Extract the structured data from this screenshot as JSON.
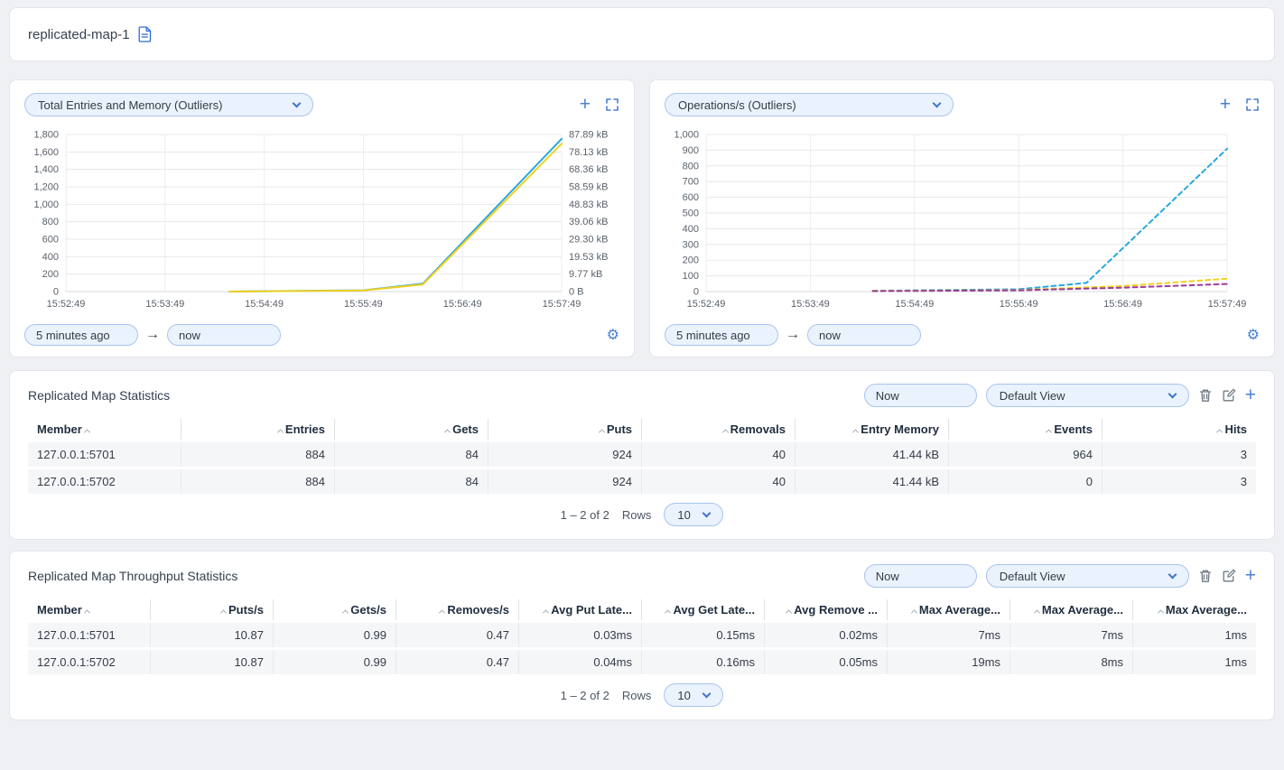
{
  "theme": {
    "accent": "#2f6bd8"
  },
  "header": {
    "title": "replicated-map-1"
  },
  "charts": [
    {
      "metric": "Total Entries and Memory (Outliers)",
      "from": "5 minutes ago",
      "to": "now"
    },
    {
      "metric": "Operations/s (Outliers)",
      "from": "5 minutes ago",
      "to": "now"
    }
  ],
  "chart_data": [
    {
      "type": "line",
      "title": "Total Entries and Memory (Outliers)",
      "x_ticks": [
        "15:52:49",
        "15:53:49",
        "15:54:49",
        "15:55:49",
        "15:56:49",
        "15:57:49"
      ],
      "y_left": {
        "min": 0,
        "max": 1800,
        "ticks": [
          "0",
          "200",
          "400",
          "600",
          "800",
          "1,000",
          "1,200",
          "1,400",
          "1,600",
          "1,800"
        ]
      },
      "y_right": {
        "ticks": [
          "0 B",
          "9.77 kB",
          "19.53 kB",
          "29.30 kB",
          "39.06 kB",
          "48.83 kB",
          "58.59 kB",
          "68.36 kB",
          "78.13 kB",
          "87.89 kB"
        ]
      },
      "grid": true,
      "legend": "none",
      "series": [
        {
          "name": "blue-entries",
          "color": "#29a8dd",
          "dashed": false,
          "points": [
            [
              0.33,
              0
            ],
            [
              0.6,
              15
            ],
            [
              0.72,
              90
            ],
            [
              1,
              1750
            ]
          ]
        },
        {
          "name": "yellow-memory",
          "color": "#f2cf1f",
          "dashed": false,
          "points": [
            [
              0.33,
              0
            ],
            [
              0.6,
              12
            ],
            [
              0.72,
              82
            ],
            [
              1,
              1695
            ]
          ]
        }
      ]
    },
    {
      "type": "line",
      "title": "Operations/s (Outliers)",
      "x_ticks": [
        "15:52:49",
        "15:53:49",
        "15:54:49",
        "15:55:49",
        "15:56:49",
        "15:57:49"
      ],
      "y_left": {
        "min": 0,
        "max": 1000,
        "ticks": [
          "0",
          "100",
          "200",
          "300",
          "400",
          "500",
          "600",
          "700",
          "800",
          "900",
          "1,000"
        ]
      },
      "grid": true,
      "legend": "none",
      "series": [
        {
          "name": "blue-ops",
          "color": "#29a8dd",
          "dashed": true,
          "points": [
            [
              0.32,
              5
            ],
            [
              0.6,
              15
            ],
            [
              0.73,
              55
            ],
            [
              1,
              910
            ]
          ]
        },
        {
          "name": "yellow-ops",
          "color": "#f2cf1f",
          "dashed": true,
          "points": [
            [
              0.32,
              4
            ],
            [
              0.6,
              10
            ],
            [
              0.8,
              35
            ],
            [
              1,
              82
            ]
          ]
        },
        {
          "name": "purple-ops",
          "color": "#9b3d96",
          "dashed": true,
          "points": [
            [
              0.32,
              3
            ],
            [
              0.6,
              8
            ],
            [
              0.8,
              25
            ],
            [
              1,
              48
            ]
          ]
        }
      ]
    }
  ],
  "tables": [
    {
      "title": "Replicated Map Statistics",
      "time_filter": "Now",
      "view": "Default View",
      "columns": [
        "Member",
        "Entries",
        "Gets",
        "Puts",
        "Removals",
        "Entry Memory",
        "Events",
        "Hits"
      ],
      "rows": [
        [
          "127.0.0.1:5701",
          "884",
          "84",
          "924",
          "40",
          "41.44 kB",
          "964",
          "3"
        ],
        [
          "127.0.0.1:5702",
          "884",
          "84",
          "924",
          "40",
          "41.44 kB",
          "0",
          "3"
        ]
      ],
      "pagination": {
        "range": "1 – 2 of 2",
        "rows_label": "Rows",
        "page_size": "10"
      }
    },
    {
      "title": "Replicated Map Throughput Statistics",
      "time_filter": "Now",
      "view": "Default View",
      "columns": [
        "Member",
        "Puts/s",
        "Gets/s",
        "Removes/s",
        "Avg Put Late...",
        "Avg Get Late...",
        "Avg Remove ...",
        "Max Average...",
        "Max Average...",
        "Max Average..."
      ],
      "rows": [
        [
          "127.0.0.1:5701",
          "10.87",
          "0.99",
          "0.47",
          "0.03ms",
          "0.15ms",
          "0.02ms",
          "7ms",
          "7ms",
          "1ms"
        ],
        [
          "127.0.0.1:5702",
          "10.87",
          "0.99",
          "0.47",
          "0.04ms",
          "0.16ms",
          "0.05ms",
          "19ms",
          "8ms",
          "1ms"
        ]
      ],
      "pagination": {
        "range": "1 – 2 of 2",
        "rows_label": "Rows",
        "page_size": "10"
      }
    }
  ]
}
